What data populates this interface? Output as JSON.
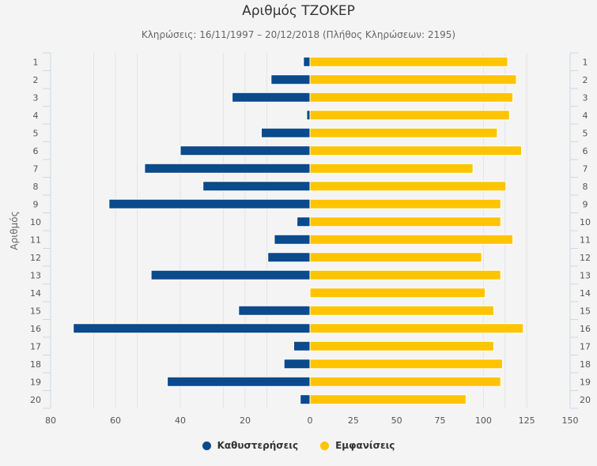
{
  "chart_data": {
    "type": "bar",
    "orientation": "horizontal-butterfly",
    "title": "Αριθμός ΤΖΟΚΕΡ",
    "subtitle": "Κληρώσεις: 16/11/1997 – 20/12/2018 (Πλήθος Κληρώσεων: 2195)",
    "ylabel": "Αριθμός",
    "categories": [
      "1",
      "2",
      "3",
      "4",
      "5",
      "6",
      "7",
      "8",
      "9",
      "10",
      "11",
      "12",
      "13",
      "14",
      "15",
      "16",
      "17",
      "18",
      "19",
      "20"
    ],
    "series": [
      {
        "name": "Καθυστερήσεις",
        "color": "#0b4a8b",
        "side": "left",
        "values": [
          2,
          12,
          24,
          1,
          15,
          40,
          51,
          33,
          62,
          4,
          11,
          13,
          49,
          0,
          22,
          73,
          5,
          8,
          44,
          3
        ]
      },
      {
        "name": "Εμφανίσεις",
        "color": "#ffc400",
        "side": "right",
        "values": [
          114,
          119,
          117,
          115,
          108,
          122,
          94,
          113,
          110,
          110,
          117,
          99,
          110,
          101,
          106,
          123,
          106,
          111,
          110,
          90
        ]
      }
    ],
    "left_axis": {
      "range": [
        80,
        0
      ],
      "ticks": [
        "80",
        "60",
        "40",
        "20",
        "0"
      ]
    },
    "right_axis": {
      "range": [
        0,
        150
      ],
      "ticks": [
        "0",
        "25",
        "50",
        "75",
        "100",
        "125",
        "150"
      ]
    },
    "legend_position": "bottom-center"
  }
}
